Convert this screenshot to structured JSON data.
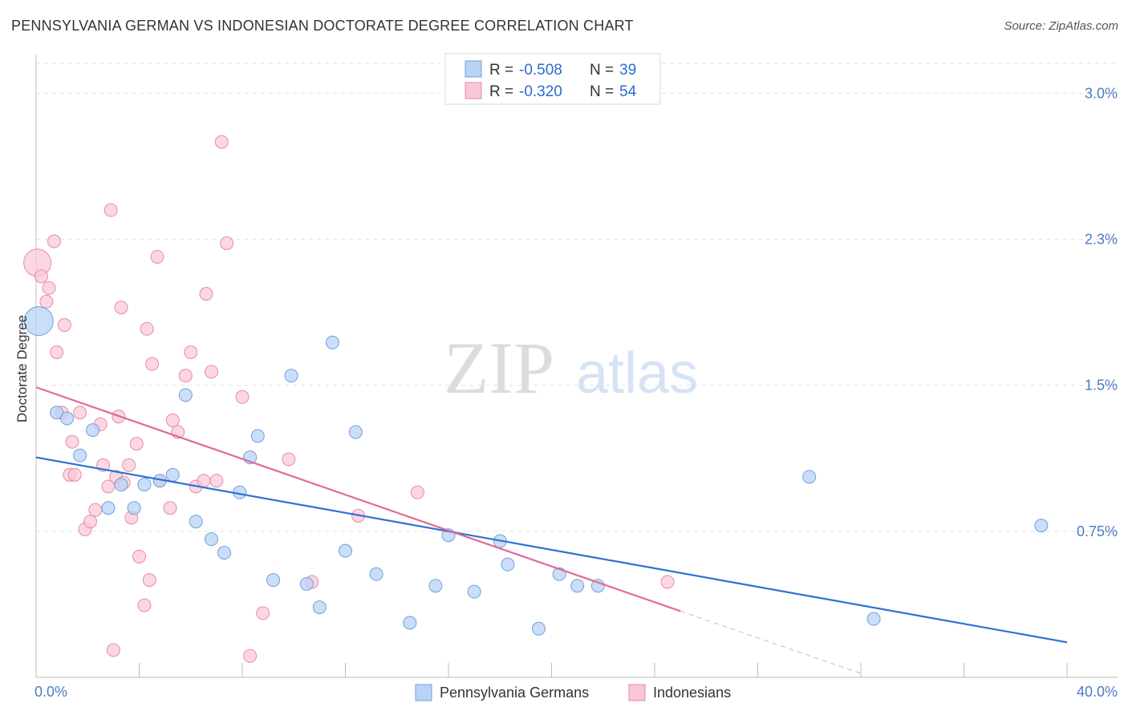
{
  "title": "PENNSYLVANIA GERMAN VS INDONESIAN DOCTORATE DEGREE CORRELATION CHART",
  "source": "Source: ZipAtlas.com",
  "watermark": {
    "zip": "ZIP",
    "atlas": "atlas"
  },
  "legend": {
    "r_label": "R =",
    "n_label": "N =",
    "rows": [
      {
        "r": "-0.508",
        "n": "39"
      },
      {
        "r": "-0.320",
        "n": "54"
      }
    ]
  },
  "bottom_legend": [
    "Pennsylvania Germans",
    "Indonesians"
  ],
  "chart_data": {
    "type": "scatter",
    "title": "PENNSYLVANIA GERMAN VS INDONESIAN DOCTORATE DEGREE CORRELATION CHART",
    "xlabel": "",
    "ylabel": "Doctorate Degree",
    "xlim": [
      0,
      40
    ],
    "ylim": [
      0.0,
      3.15
    ],
    "x_tick_labels": [
      "0.0%",
      "40.0%"
    ],
    "y_ticks": [
      0.75,
      1.5,
      2.25,
      3.0
    ],
    "y_tick_labels": [
      "0.75%",
      "1.5%",
      "2.3%",
      "3.0%"
    ],
    "grid": true,
    "legend_position": "top-center",
    "colors": {
      "pa_fill": "#b9d3f5",
      "pa_stroke": "#6f9fe0",
      "pa_line": "#2d72d2",
      "id_fill": "#f9c6d6",
      "id_stroke": "#e88aa8",
      "id_line": "#e06b96"
    },
    "series": [
      {
        "name": "Pennsylvania Germans",
        "trend": {
          "x0": 0,
          "y0": 1.13,
          "x1": 40,
          "y1": 0.18
        },
        "points": [
          {
            "x": 0.1,
            "y": 1.83,
            "big": true
          },
          {
            "x": 0.8,
            "y": 1.36
          },
          {
            "x": 1.2,
            "y": 1.33
          },
          {
            "x": 1.7,
            "y": 1.14
          },
          {
            "x": 2.2,
            "y": 1.27
          },
          {
            "x": 2.8,
            "y": 0.87
          },
          {
            "x": 3.3,
            "y": 0.99
          },
          {
            "x": 3.8,
            "y": 0.87
          },
          {
            "x": 4.2,
            "y": 0.99
          },
          {
            "x": 4.8,
            "y": 1.01
          },
          {
            "x": 5.3,
            "y": 1.04
          },
          {
            "x": 5.8,
            "y": 1.45
          },
          {
            "x": 6.2,
            "y": 0.8
          },
          {
            "x": 6.8,
            "y": 0.71
          },
          {
            "x": 7.3,
            "y": 0.64
          },
          {
            "x": 7.9,
            "y": 0.95
          },
          {
            "x": 8.3,
            "y": 1.13
          },
          {
            "x": 8.6,
            "y": 1.24
          },
          {
            "x": 9.2,
            "y": 0.5
          },
          {
            "x": 9.9,
            "y": 1.55
          },
          {
            "x": 10.5,
            "y": 0.48
          },
          {
            "x": 11.0,
            "y": 0.36
          },
          {
            "x": 11.5,
            "y": 1.72
          },
          {
            "x": 12.0,
            "y": 0.65
          },
          {
            "x": 12.4,
            "y": 1.26
          },
          {
            "x": 13.2,
            "y": 0.53
          },
          {
            "x": 14.5,
            "y": 0.28
          },
          {
            "x": 15.5,
            "y": 0.47
          },
          {
            "x": 16.0,
            "y": 0.73
          },
          {
            "x": 17.0,
            "y": 0.44
          },
          {
            "x": 18.0,
            "y": 0.7
          },
          {
            "x": 18.3,
            "y": 0.58
          },
          {
            "x": 19.5,
            "y": 0.25
          },
          {
            "x": 20.3,
            "y": 0.53
          },
          {
            "x": 21.0,
            "y": 0.47
          },
          {
            "x": 21.8,
            "y": 0.47
          },
          {
            "x": 30.0,
            "y": 1.03
          },
          {
            "x": 32.5,
            "y": 0.3
          },
          {
            "x": 39.0,
            "y": 0.78
          }
        ]
      },
      {
        "name": "Indonesians",
        "trend": {
          "x0": 0,
          "y0": 1.49,
          "x1": 25,
          "y1": 0.34
        },
        "trend_ext": {
          "x0": 25,
          "y0": 0.34,
          "x1": 32,
          "y1": 0.02
        },
        "points": [
          {
            "x": 0.05,
            "y": 2.13,
            "big": true
          },
          {
            "x": 0.2,
            "y": 2.06
          },
          {
            "x": 0.4,
            "y": 1.93
          },
          {
            "x": 0.5,
            "y": 2.0
          },
          {
            "x": 0.7,
            "y": 2.24
          },
          {
            "x": 0.8,
            "y": 1.67
          },
          {
            "x": 1.0,
            "y": 1.36
          },
          {
            "x": 1.1,
            "y": 1.81
          },
          {
            "x": 1.3,
            "y": 1.04
          },
          {
            "x": 1.4,
            "y": 1.21
          },
          {
            "x": 1.5,
            "y": 1.04
          },
          {
            "x": 1.7,
            "y": 1.36
          },
          {
            "x": 1.9,
            "y": 0.76
          },
          {
            "x": 2.1,
            "y": 0.8
          },
          {
            "x": 2.3,
            "y": 0.86
          },
          {
            "x": 2.5,
            "y": 1.3
          },
          {
            "x": 2.6,
            "y": 1.09
          },
          {
            "x": 2.8,
            "y": 0.98
          },
          {
            "x": 2.9,
            "y": 2.4
          },
          {
            "x": 3.0,
            "y": 0.14
          },
          {
            "x": 3.1,
            "y": 1.03
          },
          {
            "x": 3.2,
            "y": 1.34
          },
          {
            "x": 3.3,
            "y": 1.9
          },
          {
            "x": 3.4,
            "y": 1.0
          },
          {
            "x": 3.6,
            "y": 1.09
          },
          {
            "x": 3.7,
            "y": 0.82
          },
          {
            "x": 3.9,
            "y": 1.2
          },
          {
            "x": 4.0,
            "y": 0.62
          },
          {
            "x": 4.2,
            "y": 0.37
          },
          {
            "x": 4.3,
            "y": 1.79
          },
          {
            "x": 4.4,
            "y": 0.5
          },
          {
            "x": 4.5,
            "y": 1.61
          },
          {
            "x": 4.7,
            "y": 2.16
          },
          {
            "x": 4.8,
            "y": 1.01
          },
          {
            "x": 5.2,
            "y": 0.87
          },
          {
            "x": 5.3,
            "y": 1.32
          },
          {
            "x": 5.5,
            "y": 1.26
          },
          {
            "x": 5.8,
            "y": 1.55
          },
          {
            "x": 6.0,
            "y": 1.67
          },
          {
            "x": 6.2,
            "y": 0.98
          },
          {
            "x": 6.5,
            "y": 1.01
          },
          {
            "x": 6.6,
            "y": 1.97
          },
          {
            "x": 6.8,
            "y": 1.57
          },
          {
            "x": 7.0,
            "y": 1.01
          },
          {
            "x": 7.2,
            "y": 2.75
          },
          {
            "x": 7.4,
            "y": 2.23
          },
          {
            "x": 8.0,
            "y": 1.44
          },
          {
            "x": 8.3,
            "y": 0.11
          },
          {
            "x": 8.8,
            "y": 0.33
          },
          {
            "x": 9.8,
            "y": 1.12
          },
          {
            "x": 10.7,
            "y": 0.49
          },
          {
            "x": 12.5,
            "y": 0.83
          },
          {
            "x": 14.8,
            "y": 0.95
          },
          {
            "x": 24.5,
            "y": 0.49
          }
        ]
      }
    ]
  }
}
